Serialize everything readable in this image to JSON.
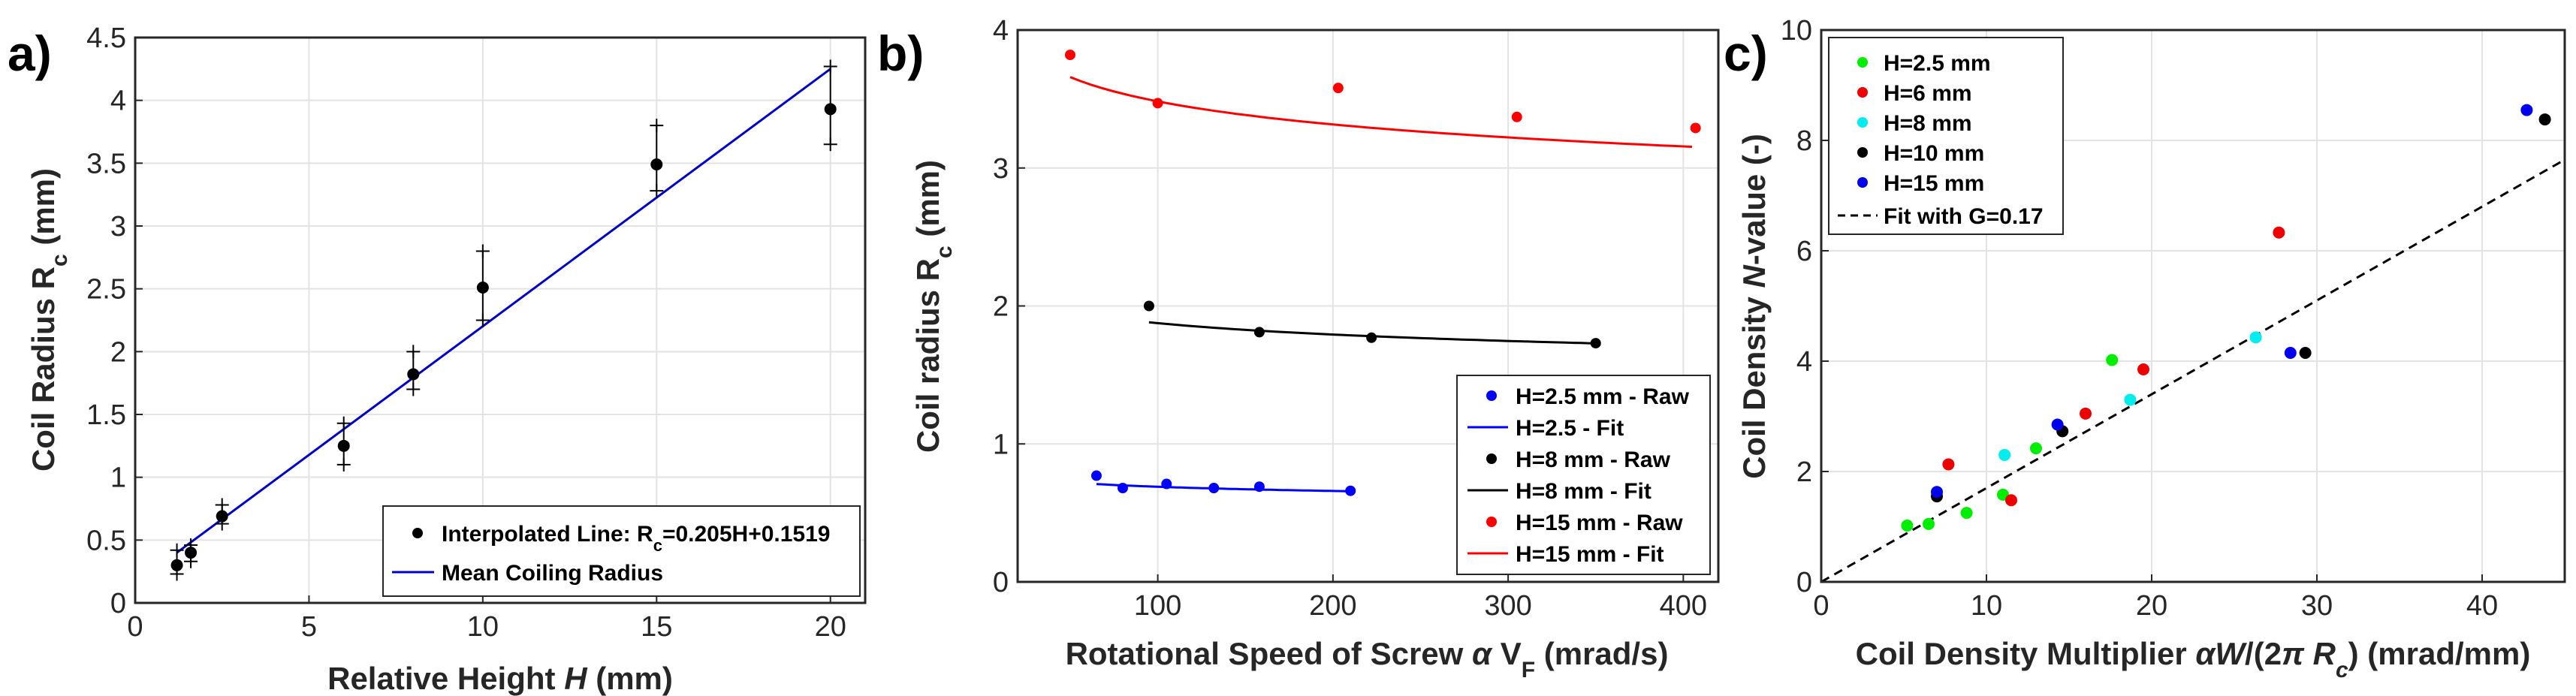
{
  "chart_data": [
    {
      "panel": "a)",
      "type": "scatter",
      "xlabel_text": "Relative Height",
      "xlabel_var": "H",
      "xlabel_unit": "(mm)",
      "ylabel_main": "Coil Radius R",
      "ylabel_sub": "c",
      "ylabel_unit": " (mm)",
      "xlim": [
        0,
        21
      ],
      "ylim": [
        0,
        4.5
      ],
      "xticks": [
        0,
        5,
        10,
        15,
        20
      ],
      "xtick_labels": [
        "0",
        "5",
        "10",
        "15",
        "20"
      ],
      "yticks": [
        0,
        0.5,
        1,
        1.5,
        2,
        2.5,
        3,
        3.5,
        4,
        4.5
      ],
      "ytick_labels": [
        "0",
        "0.5",
        "1",
        "1.5",
        "2",
        "2.5",
        "3",
        "3.5",
        "4",
        "4.5"
      ],
      "grid": true,
      "points": {
        "name": "Interpolated Line: R_c=0.205H+0.1519",
        "color": "#000000",
        "x": [
          1.2,
          1.6,
          2.5,
          6,
          8,
          10,
          15,
          20
        ],
        "y": [
          0.3,
          0.4,
          0.69,
          1.25,
          1.82,
          2.51,
          3.49,
          3.93
        ],
        "err_low": [
          0.23,
          0.33,
          0.63,
          1.1,
          1.7,
          2.25,
          3.28,
          3.65
        ],
        "err_high": [
          0.42,
          0.46,
          0.78,
          1.43,
          2.0,
          2.8,
          3.8,
          4.27
        ]
      },
      "fit_line": {
        "name": "Mean Coiling Radius",
        "color": "#0000cc",
        "x": [
          1.2,
          20
        ],
        "y": [
          0.4,
          4.25
        ]
      },
      "legend": {
        "position": "bottom-right",
        "entry1_pre": "Interpolated Line: R",
        "entry1_sub": "c",
        "entry1_post": "=0.205H+0.1519",
        "entry2": "Mean Coiling Radius"
      }
    },
    {
      "panel": "b)",
      "type": "scatter",
      "xlabel_main": "Rotational Speed of Screw ",
      "xlabel_alpha": "α",
      "xlabel_v": " V",
      "xlabel_sub": "F",
      "xlabel_unit": " (mrad/s)",
      "ylabel_main": "Coil radius R",
      "ylabel_sub": "c",
      "ylabel_unit": " (mm)",
      "xlim": [
        20,
        420
      ],
      "ylim": [
        0,
        4
      ],
      "xticks": [
        100,
        200,
        300,
        400
      ],
      "xtick_labels": [
        "100",
        "200",
        "300",
        "400"
      ],
      "yticks": [
        0,
        1,
        2,
        3,
        4
      ],
      "ytick_labels": [
        "0",
        "1",
        "2",
        "3",
        "4"
      ],
      "grid": true,
      "series": [
        {
          "name": "H=2.5 mm - Raw",
          "fit_name": "H=2.5 - Fit",
          "color": "#0000ff",
          "x": [
            65,
            80,
            105,
            132,
            158,
            210
          ],
          "y": [
            0.77,
            0.68,
            0.71,
            0.68,
            0.69,
            0.66
          ],
          "fit_x": [
            65,
            210
          ],
          "fit_a": 0.93,
          "fit_b": -0.065
        },
        {
          "name": "H=8 mm - Raw",
          "fit_name": "H=8 mm  - Fit",
          "color": "#000000",
          "x": [
            95,
            158,
            222,
            350
          ],
          "y": [
            2.0,
            1.81,
            1.77,
            1.73
          ],
          "fit_x": [
            95,
            350
          ],
          "fit_a": 2.53,
          "fit_b": -0.065
        },
        {
          "name": "H=15 mm - Raw",
          "fit_name": "H=15 mm  - Fit",
          "color": "#ff0000",
          "x": [
            50,
            100,
            203,
            305,
            407
          ],
          "y": [
            3.82,
            3.47,
            3.58,
            3.37,
            3.29
          ],
          "fit_x": [
            50,
            405
          ],
          "fit_a": 4.83,
          "fit_b": -0.071
        }
      ],
      "legend": {
        "position": "bottom-right"
      }
    },
    {
      "panel": "c)",
      "type": "scatter",
      "xlabel_main": "Coil Density Multiplier ",
      "xlabel_alpha": "α",
      "xlabel_w": "W",
      "xlabel_mid": "/(2",
      "xlabel_pi": "π",
      "xlabel_r": " R",
      "xlabel_sub": "c",
      "xlabel_unit": ") (mrad/mm)",
      "ylabel_main": "Coil Density  ",
      "ylabel_var": "N",
      "ylabel_unit": "-value (-)",
      "xlim": [
        0,
        45
      ],
      "ylim": [
        0,
        10
      ],
      "xticks": [
        0,
        10,
        20,
        30,
        40
      ],
      "xtick_labels": [
        "0",
        "10",
        "20",
        "30",
        "40"
      ],
      "yticks": [
        0,
        2,
        4,
        6,
        8,
        10
      ],
      "ytick_labels": [
        "0",
        "2",
        "4",
        "6",
        "8",
        "10"
      ],
      "grid": true,
      "series": [
        {
          "name": "H=2.5 mm",
          "color": "#00ee00",
          "x": [
            5.2,
            6.5,
            8.8,
            11,
            13,
            17.6
          ],
          "y": [
            1.02,
            1.05,
            1.25,
            1.58,
            2.42,
            4.02
          ]
        },
        {
          "name": "H=6 mm",
          "color": "#ee0000",
          "x": [
            7.7,
            11.5,
            16,
            19.5,
            27.7
          ],
          "y": [
            2.13,
            1.48,
            3.05,
            3.85,
            6.33
          ]
        },
        {
          "name": "H=8 mm",
          "color": "#00eeee",
          "x": [
            11.1,
            18.7,
            26.3
          ],
          "y": [
            2.3,
            3.3,
            4.43
          ]
        },
        {
          "name": "H=10 mm",
          "color": "#000000",
          "x": [
            7.0,
            14.6,
            29.3,
            43.8
          ],
          "y": [
            1.55,
            2.73,
            4.15,
            8.38
          ]
        },
        {
          "name": "H=15 mm",
          "color": "#0000ee",
          "x": [
            7.0,
            14.3,
            28.4,
            42.7
          ],
          "y": [
            1.63,
            2.85,
            4.15,
            8.55
          ]
        }
      ],
      "fit_line": {
        "name": "Fit with G=0.17",
        "color": "#000000",
        "x": [
          0,
          45
        ],
        "y": [
          0,
          7.65
        ]
      },
      "legend": {
        "position": "top-left"
      }
    }
  ]
}
